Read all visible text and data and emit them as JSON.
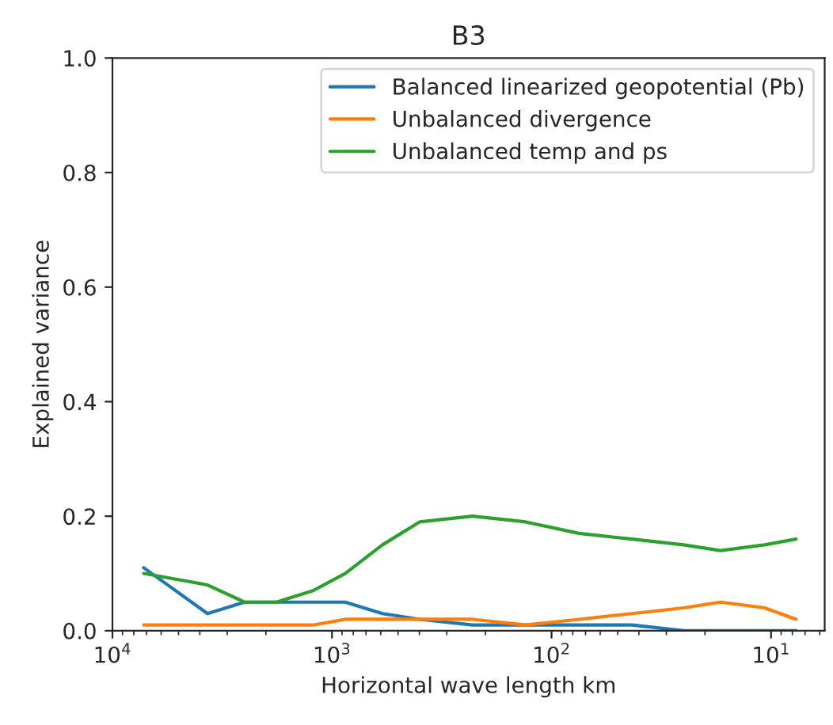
{
  "chart_data": {
    "type": "line",
    "title": "B3",
    "xlabel": "Horizontal wave length km",
    "ylabel": "Explained variance",
    "x": [
      7200,
      3690,
      2500,
      1790,
      1220,
      871,
      589,
      399,
      229,
      131,
      75,
      43,
      25,
      17,
      10.7,
      7.7
    ],
    "series": [
      {
        "name": "Balanced linearized geopotential (Pb)",
        "color": "#1f77b4",
        "values": [
          0.11,
          0.03,
          0.05,
          0.05,
          0.05,
          0.05,
          0.03,
          0.02,
          0.01,
          0.01,
          0.01,
          0.01,
          0.0,
          0.0,
          0.0,
          0.0
        ]
      },
      {
        "name": "Unbalanced divergence",
        "color": "#ff7f0e",
        "values": [
          0.01,
          0.01,
          0.01,
          0.01,
          0.01,
          0.02,
          0.02,
          0.02,
          0.02,
          0.01,
          0.02,
          0.03,
          0.04,
          0.05,
          0.04,
          0.02
        ]
      },
      {
        "name": "Unbalanced temp and ps",
        "color": "#2ca02c",
        "values": [
          0.1,
          0.08,
          0.05,
          0.05,
          0.07,
          0.1,
          0.15,
          0.19,
          0.2,
          0.19,
          0.17,
          0.16,
          0.15,
          0.14,
          0.15,
          0.16
        ]
      }
    ],
    "log": "x",
    "xlim": [
      10000,
      5.7
    ],
    "xticks": [
      {
        "value": 10000,
        "label": "10$^{4}$"
      },
      {
        "value": 1000,
        "label": "10$^{3}$"
      },
      {
        "value": 100,
        "label": "10$^{2}$"
      },
      {
        "value": 10,
        "label": "10$^{1}$"
      }
    ],
    "ylim": [
      0,
      1
    ],
    "yticks": [
      {
        "value": 0,
        "label": "0.0"
      },
      {
        "value": 0.2,
        "label": "0.2"
      },
      {
        "value": 0.4,
        "label": "0.4"
      },
      {
        "value": 0.6,
        "label": "0.6"
      },
      {
        "value": 0.8,
        "label": "0.8"
      },
      {
        "value": 1,
        "label": "1.0"
      }
    ],
    "grid": false,
    "legend": "top right"
  }
}
